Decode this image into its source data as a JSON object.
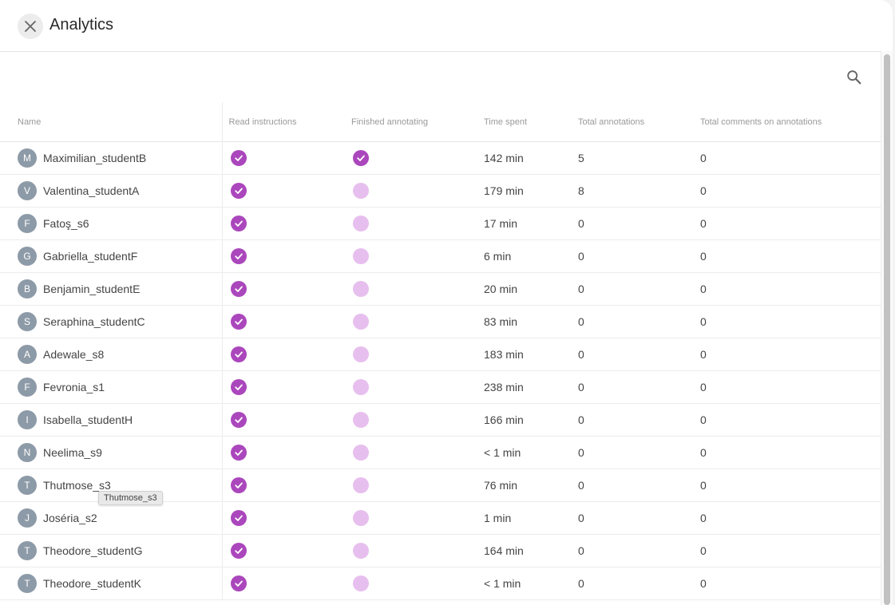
{
  "header": {
    "title": "Analytics",
    "close_icon": "close-icon",
    "search_icon": "search-icon"
  },
  "table": {
    "columns": [
      "Name",
      "Read instructions",
      "Finished annotating",
      "Time spent",
      "Total annotations",
      "Total comments on annotations"
    ],
    "rows": [
      {
        "initial": "M",
        "name": "Maximilian_studentB",
        "read": true,
        "finished": true,
        "time": "142 min",
        "annotations": "5",
        "comments": "0"
      },
      {
        "initial": "V",
        "name": "Valentina_studentA",
        "read": true,
        "finished": false,
        "time": "179 min",
        "annotations": "8",
        "comments": "0"
      },
      {
        "initial": "F",
        "name": "Fatoş_s6",
        "read": true,
        "finished": false,
        "time": "17 min",
        "annotations": "0",
        "comments": "0"
      },
      {
        "initial": "G",
        "name": "Gabriella_studentF",
        "read": true,
        "finished": false,
        "time": "6 min",
        "annotations": "0",
        "comments": "0"
      },
      {
        "initial": "B",
        "name": "Benjamin_studentE",
        "read": true,
        "finished": false,
        "time": "20 min",
        "annotations": "0",
        "comments": "0"
      },
      {
        "initial": "S",
        "name": "Seraphina_studentC",
        "read": true,
        "finished": false,
        "time": "83 min",
        "annotations": "0",
        "comments": "0"
      },
      {
        "initial": "A",
        "name": "Adewale_s8",
        "read": true,
        "finished": false,
        "time": "183 min",
        "annotations": "0",
        "comments": "0"
      },
      {
        "initial": "F",
        "name": "Fevronia_s1",
        "read": true,
        "finished": false,
        "time": "238 min",
        "annotations": "0",
        "comments": "0"
      },
      {
        "initial": "I",
        "name": "Isabella_studentH",
        "read": true,
        "finished": false,
        "time": "166 min",
        "annotations": "0",
        "comments": "0"
      },
      {
        "initial": "N",
        "name": "Neelima_s9",
        "read": true,
        "finished": false,
        "time": "< 1 min",
        "annotations": "0",
        "comments": "0"
      },
      {
        "initial": "T",
        "name": "Thutmose_s3",
        "read": true,
        "finished": false,
        "time": "76 min",
        "annotations": "0",
        "comments": "0"
      },
      {
        "initial": "J",
        "name": "Joséria_s2",
        "read": true,
        "finished": false,
        "time": "1 min",
        "annotations": "0",
        "comments": "0"
      },
      {
        "initial": "T",
        "name": "Theodore_studentG",
        "read": true,
        "finished": false,
        "time": "164 min",
        "annotations": "0",
        "comments": "0"
      },
      {
        "initial": "T",
        "name": "Theodore_studentK",
        "read": true,
        "finished": false,
        "time": "< 1 min",
        "annotations": "0",
        "comments": "0"
      }
    ]
  },
  "tooltip": {
    "text": "Thutmose_s3"
  },
  "colors": {
    "accent": "#ab47bc",
    "accent_light": "#e7bfee",
    "avatar": "#8d9aa7"
  }
}
